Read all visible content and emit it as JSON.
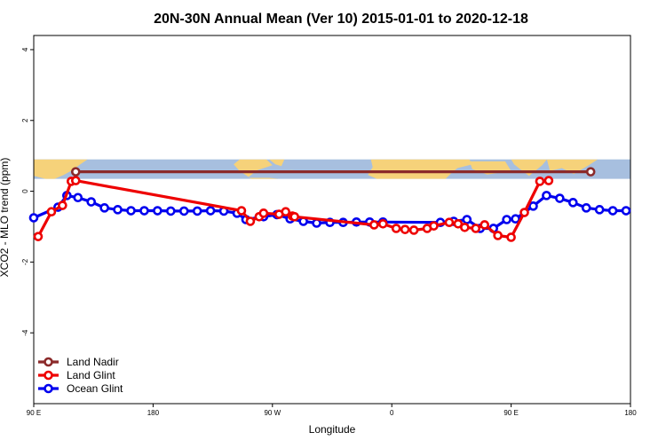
{
  "chart_data": {
    "type": "line",
    "title": "20N-30N Annual Mean (Ver 10)   2015-01-01 to 2020-12-18",
    "xlabel": "Longitude",
    "ylabel": "XCO2 - MLO trend (ppm)",
    "xlim": [
      -90,
      180
    ],
    "ylim": [
      -6,
      4.4
    ],
    "grid": false,
    "legend_position": "bottom-left",
    "x_ticks": [
      {
        "value": -90,
        "label": "90 E"
      },
      {
        "value": -36,
        "label": "180"
      },
      {
        "value": 18,
        "label": "90 W"
      },
      {
        "value": 72,
        "label": "0"
      },
      {
        "value": 126,
        "label": "90 E"
      },
      {
        "value": 180,
        "label": "180"
      }
    ],
    "y_ticks": [
      {
        "value": 4,
        "label": "4"
      },
      {
        "value": 2,
        "label": "2"
      },
      {
        "value": 0,
        "label": "0"
      },
      {
        "value": -2,
        "label": "-2"
      },
      {
        "value": -4,
        "label": "-4"
      }
    ],
    "map_band": {
      "y_top": 0.9,
      "y_bottom": 0.35,
      "ocean_color": "#a7bfdf",
      "land_color": "#f6d27a"
    },
    "series": [
      {
        "name": "Land Nadir",
        "color": "#8b2a2a",
        "points": [
          [
            -71,
            0.55
          ],
          [
            162,
            0.55
          ]
        ]
      },
      {
        "name": "Land Glint",
        "color": "#ee0000",
        "points": [
          [
            -88,
            -1.28
          ],
          [
            -82,
            -0.58
          ],
          [
            -77,
            -0.4
          ],
          [
            -73,
            0.28
          ],
          [
            -71,
            0.3
          ],
          [
            4,
            -0.55
          ],
          [
            8,
            -0.85
          ],
          [
            12,
            -0.72
          ],
          [
            14,
            -0.62
          ],
          [
            21,
            -0.65
          ],
          [
            24,
            -0.58
          ],
          [
            27,
            -0.7
          ],
          [
            28,
            -0.72
          ],
          [
            64,
            -0.95
          ],
          [
            68,
            -0.92
          ],
          [
            74,
            -1.05
          ],
          [
            78,
            -1.08
          ],
          [
            82,
            -1.1
          ],
          [
            88,
            -1.05
          ],
          [
            91,
            -0.98
          ],
          [
            98,
            -0.88
          ],
          [
            102,
            -0.92
          ],
          [
            105,
            -1.02
          ],
          [
            110,
            -1.05
          ],
          [
            114,
            -0.95
          ],
          [
            120,
            -1.25
          ],
          [
            126,
            -1.3
          ],
          [
            132,
            -0.6
          ],
          [
            139,
            0.28
          ],
          [
            143,
            0.3
          ]
        ]
      },
      {
        "name": "Ocean Glint",
        "color": "#0000ee",
        "points": [
          [
            -90,
            -0.75
          ],
          [
            -79,
            -0.45
          ],
          [
            -75,
            -0.12
          ],
          [
            -70,
            -0.18
          ],
          [
            -64,
            -0.3
          ],
          [
            -58,
            -0.47
          ],
          [
            -52,
            -0.52
          ],
          [
            -46,
            -0.55
          ],
          [
            -40,
            -0.55
          ],
          [
            -34,
            -0.55
          ],
          [
            -28,
            -0.56
          ],
          [
            -22,
            -0.56
          ],
          [
            -16,
            -0.56
          ],
          [
            -10,
            -0.55
          ],
          [
            -4,
            -0.56
          ],
          [
            2,
            -0.62
          ],
          [
            6,
            -0.8
          ],
          [
            14,
            -0.72
          ],
          [
            20,
            -0.66
          ],
          [
            26,
            -0.78
          ],
          [
            32,
            -0.85
          ],
          [
            38,
            -0.9
          ],
          [
            44,
            -0.88
          ],
          [
            50,
            -0.88
          ],
          [
            56,
            -0.87
          ],
          [
            62,
            -0.87
          ],
          [
            68,
            -0.87
          ],
          [
            94,
            -0.88
          ],
          [
            100,
            -0.85
          ],
          [
            106,
            -0.8
          ],
          [
            112,
            -1.05
          ],
          [
            118,
            -1.05
          ],
          [
            124,
            -0.8
          ],
          [
            128,
            -0.78
          ],
          [
            136,
            -0.42
          ],
          [
            142,
            -0.12
          ],
          [
            148,
            -0.2
          ],
          [
            154,
            -0.32
          ],
          [
            160,
            -0.47
          ],
          [
            166,
            -0.52
          ],
          [
            172,
            -0.55
          ],
          [
            178,
            -0.55
          ]
        ]
      }
    ]
  }
}
